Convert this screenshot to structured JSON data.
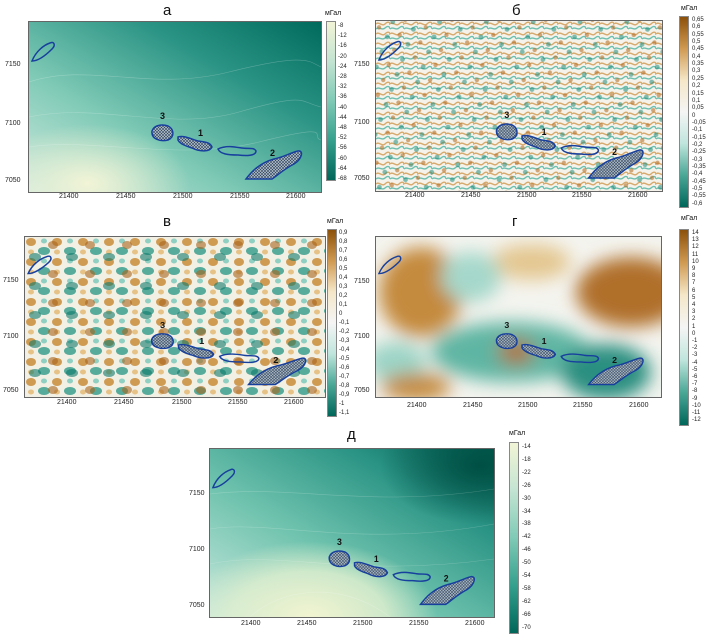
{
  "unit": "мГал",
  "x_ticks": [
    "21400",
    "21450",
    "21500",
    "21550",
    "21600"
  ],
  "y_ticks": [
    "7150",
    "7100",
    "7050"
  ],
  "body_labels": [
    "1",
    "2",
    "3"
  ],
  "panels": [
    {
      "title": "а",
      "colorbar_labels": [
        "-8",
        "-12",
        "-16",
        "-20",
        "-24",
        "-28",
        "-32",
        "-36",
        "-40",
        "-44",
        "-48",
        "-52",
        "-56",
        "-60",
        "-64",
        "-68"
      ],
      "colors": {
        "top": "#f2f4d6",
        "mid": "#7fcab6",
        "bottom": "#00665a"
      }
    },
    {
      "title": "б",
      "colorbar_labels": [
        "0,65",
        "0,6",
        "0,55",
        "0,5",
        "0,45",
        "0,4",
        "0,35",
        "0,3",
        "0,25",
        "0,2",
        "0,15",
        "0,1",
        "0,05",
        "0",
        "-0,05",
        "-0,1",
        "-0,15",
        "-0,2",
        "-0,25",
        "-0,3",
        "-0,35",
        "-0,4",
        "-0,45",
        "-0,5",
        "-0,55",
        "-0,6"
      ],
      "colors": {
        "top": "#8c510a",
        "mid": "#f5f5f5",
        "bottom": "#00665a"
      }
    },
    {
      "title": "в",
      "colorbar_labels": [
        "0,9",
        "0,8",
        "0,7",
        "0,6",
        "0,5",
        "0,4",
        "0,3",
        "0,2",
        "0,1",
        "0",
        "-0,1",
        "-0,2",
        "-0,3",
        "-0,4",
        "-0,5",
        "-0,6",
        "-0,7",
        "-0,8",
        "-0,9",
        "-1",
        "-1,1"
      ],
      "colors": {
        "top": "#8c510a",
        "mid": "#f5f5f5",
        "bottom": "#00665a"
      }
    },
    {
      "title": "г",
      "colorbar_labels": [
        "14",
        "13",
        "12",
        "11",
        "10",
        "9",
        "8",
        "7",
        "6",
        "5",
        "4",
        "3",
        "2",
        "1",
        "0",
        "-1",
        "-2",
        "-3",
        "-4",
        "-5",
        "-6",
        "-7",
        "-8",
        "-9",
        "-10",
        "-11",
        "-12"
      ],
      "colors": {
        "top": "#8c510a",
        "mid": "#f5f5f5",
        "bottom": "#00665a"
      }
    },
    {
      "title": "д",
      "colorbar_labels": [
        "-14",
        "-18",
        "-22",
        "-26",
        "-30",
        "-34",
        "-38",
        "-42",
        "-46",
        "-50",
        "-54",
        "-58",
        "-62",
        "-66",
        "-70"
      ],
      "colors": {
        "top": "#f2f4d6",
        "mid": "#7fcab6",
        "bottom": "#00665a"
      }
    }
  ]
}
